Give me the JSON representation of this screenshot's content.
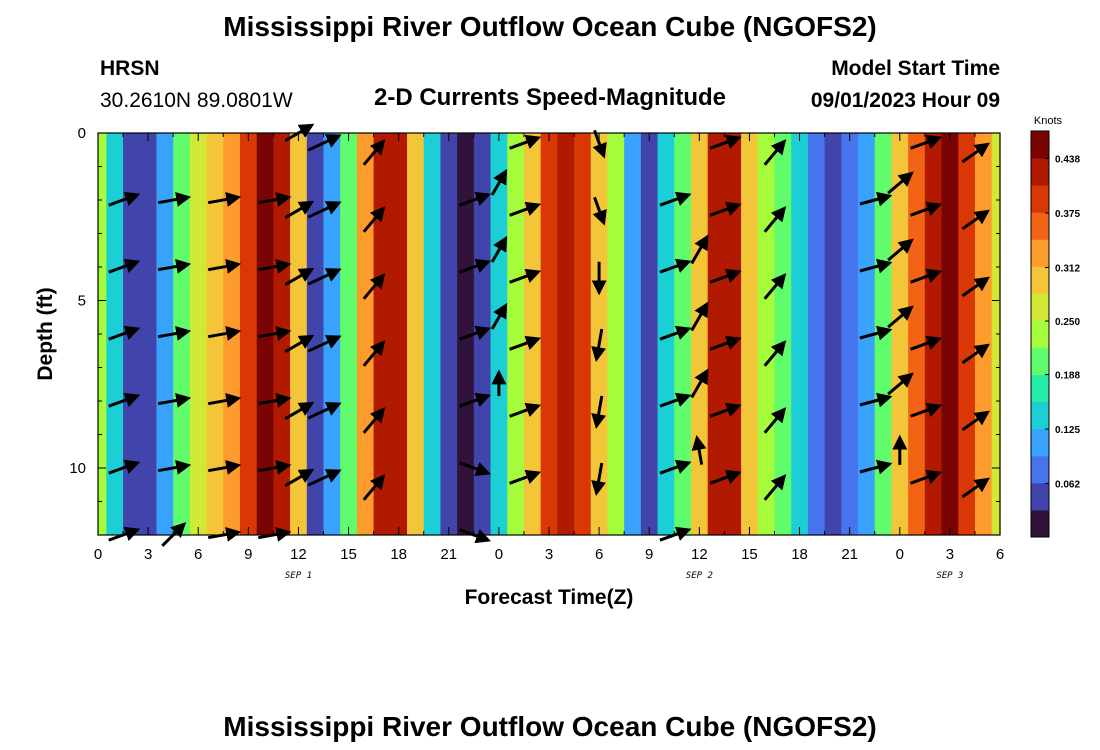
{
  "page_title": "Mississippi River Outflow Ocean Cube (NGOFS2)",
  "header": {
    "station_id": "HRSN",
    "coordinates": "30.2610N  89.0801W",
    "plot_title": "2-D Currents Speed-Magnitude",
    "model_label": "Model Start Time",
    "model_time": "09/01/2023 Hour 09"
  },
  "footer_title": "Mississippi River Outflow Ocean Cube (NGOFS2)",
  "chart_data": {
    "type": "heatmap",
    "title": "2-D Currents Speed-Magnitude",
    "xlabel": "Forecast Time(Z)",
    "ylabel": "Depth (ft)",
    "x_hours_range": [
      0,
      54
    ],
    "x_ticks": [
      {
        "hour": 0,
        "label": "0"
      },
      {
        "hour": 3,
        "label": "3"
      },
      {
        "hour": 6,
        "label": "6"
      },
      {
        "hour": 9,
        "label": "9"
      },
      {
        "hour": 12,
        "label": "12"
      },
      {
        "hour": 15,
        "label": "15"
      },
      {
        "hour": 18,
        "label": "18"
      },
      {
        "hour": 21,
        "label": "21"
      },
      {
        "hour": 24,
        "label": "0"
      },
      {
        "hour": 27,
        "label": "3"
      },
      {
        "hour": 30,
        "label": "6"
      },
      {
        "hour": 33,
        "label": "9"
      },
      {
        "hour": 36,
        "label": "12"
      },
      {
        "hour": 39,
        "label": "15"
      },
      {
        "hour": 42,
        "label": "18"
      },
      {
        "hour": 45,
        "label": "21"
      },
      {
        "hour": 48,
        "label": "0"
      },
      {
        "hour": 51,
        "label": "3"
      },
      {
        "hour": 54,
        "label": "6"
      }
    ],
    "date_labels": [
      {
        "hour": 12,
        "label": "SEP 1"
      },
      {
        "hour": 36,
        "label": "SEP 2"
      },
      {
        "hour": 51,
        "label": "SEP 3"
      }
    ],
    "y_range": [
      0,
      12
    ],
    "y_ticks": [
      {
        "value": 0,
        "label": "0"
      },
      {
        "value": 5,
        "label": "5"
      },
      {
        "value": 10,
        "label": "10"
      }
    ],
    "colorbar": {
      "unit": "Knots",
      "min": 0.0,
      "max": 0.47,
      "ticks": [
        "0.438",
        "0.375",
        "0.312",
        "0.250",
        "0.188",
        "0.125",
        "0.062"
      ],
      "colors": [
        "#30123b",
        "#4145ab",
        "#4675ed",
        "#39a2fc",
        "#1bcfd4",
        "#24eca6",
        "#61fc6c",
        "#a4fc3b",
        "#d1e834",
        "#f3c63a",
        "#fe9b2d",
        "#f36315",
        "#d93806",
        "#b11901",
        "#7a0403"
      ]
    },
    "speed_knots": [
      0.22,
      0.13,
      0.045,
      0.06,
      0.12,
      0.2,
      0.26,
      0.3,
      0.32,
      0.4,
      0.44,
      0.43,
      0.3,
      0.06,
      0.1,
      0.2,
      0.33,
      0.42,
      0.42,
      0.3,
      0.15,
      0.06,
      0.03,
      0.05,
      0.15,
      0.25,
      0.31,
      0.38,
      0.41,
      0.4,
      0.3,
      0.22,
      0.12,
      0.05,
      0.13,
      0.2,
      0.3,
      0.41,
      0.42,
      0.3,
      0.25,
      0.19,
      0.14,
      0.09,
      0.05,
      0.07,
      0.12,
      0.2,
      0.3,
      0.36,
      0.42,
      0.44,
      0.4,
      0.33,
      0.28
    ],
    "vector_depths_ft": [
      0,
      2,
      4,
      6,
      8,
      10,
      12
    ],
    "vectors": [
      {
        "hour": 1.5,
        "dir_deg": 70,
        "rel_len": 0.9,
        "depths": [
          2,
          4,
          6,
          8,
          10,
          12
        ]
      },
      {
        "hour": 4.5,
        "dir_deg": 80,
        "rel_len": 0.9,
        "depths": [
          2,
          4,
          6,
          8,
          10
        ]
      },
      {
        "hour": 4.5,
        "dir_deg": 45,
        "rel_len": 0.9,
        "depths": [
          12
        ]
      },
      {
        "hour": 7.5,
        "dir_deg": 80,
        "rel_len": 0.9,
        "depths": [
          2,
          4,
          6,
          8,
          10,
          12
        ]
      },
      {
        "hour": 10.5,
        "dir_deg": 80,
        "rel_len": 0.9,
        "depths": [
          2,
          4,
          6,
          8,
          10,
          12
        ]
      },
      {
        "hour": 12.0,
        "dir_deg": 60,
        "rel_len": 0.9,
        "depths": [
          0,
          2.3,
          4.3,
          6.3,
          8.3,
          10.3
        ]
      },
      {
        "hour": 13.5,
        "dir_deg": 65,
        "rel_len": 1.0,
        "depths": [
          0.3,
          2.3,
          4.3,
          6.3,
          8.3,
          10.3
        ]
      },
      {
        "hour": 16.5,
        "dir_deg": 40,
        "rel_len": 0.9,
        "depths": [
          0.6,
          2.6,
          4.6,
          6.6,
          8.6,
          10.6
        ]
      },
      {
        "hour": 22.5,
        "dir_deg": 70,
        "rel_len": 0.9,
        "depths": [
          2,
          4,
          6,
          8
        ]
      },
      {
        "hour": 22.5,
        "dir_deg": 110,
        "rel_len": 0.9,
        "depths": [
          10,
          12
        ]
      },
      {
        "hour": 24.0,
        "dir_deg": 30,
        "rel_len": 0.8,
        "depths": [
          1.5,
          3.5,
          5.5
        ]
      },
      {
        "hour": 24.0,
        "dir_deg": 0,
        "rel_len": 0.7,
        "depths": [
          7.5
        ]
      },
      {
        "hour": 25.5,
        "dir_deg": 70,
        "rel_len": 0.9,
        "depths": [
          0.3,
          2.3,
          4.3,
          6.3,
          8.3,
          10.3
        ]
      },
      {
        "hour": 30.0,
        "dir_deg": 160,
        "rel_len": 0.8,
        "depths": [
          0.3,
          2.3
        ]
      },
      {
        "hour": 30.0,
        "dir_deg": 180,
        "rel_len": 0.9,
        "depths": [
          4.3
        ]
      },
      {
        "hour": 30.0,
        "dir_deg": 190,
        "rel_len": 0.9,
        "depths": [
          6.3,
          8.3,
          10.3
        ]
      },
      {
        "hour": 34.5,
        "dir_deg": 70,
        "rel_len": 0.9,
        "depths": [
          2,
          4,
          6,
          8,
          10,
          12
        ]
      },
      {
        "hour": 36.0,
        "dir_deg": 30,
        "rel_len": 0.9,
        "depths": [
          3.5,
          5.5,
          7.5
        ]
      },
      {
        "hour": 36.0,
        "dir_deg": 350,
        "rel_len": 0.8,
        "depths": [
          9.5
        ]
      },
      {
        "hour": 37.5,
        "dir_deg": 70,
        "rel_len": 0.9,
        "depths": [
          0.3,
          2.3,
          4.3,
          6.3,
          8.3,
          10.3
        ]
      },
      {
        "hour": 40.5,
        "dir_deg": 40,
        "rel_len": 0.9,
        "depths": [
          0.6,
          2.6,
          4.6,
          6.6,
          8.6,
          10.6
        ]
      },
      {
        "hour": 46.5,
        "dir_deg": 75,
        "rel_len": 0.9,
        "depths": [
          2,
          4,
          6,
          8,
          10
        ]
      },
      {
        "hour": 48.0,
        "dir_deg": 50,
        "rel_len": 0.9,
        "depths": [
          1.5,
          3.5,
          5.5,
          7.5
        ]
      },
      {
        "hour": 48.0,
        "dir_deg": 0,
        "rel_len": 0.8,
        "depths": [
          9.5
        ]
      },
      {
        "hour": 49.5,
        "dir_deg": 70,
        "rel_len": 0.9,
        "depths": [
          0.3,
          2.3,
          4.3,
          6.3,
          8.3,
          10.3
        ]
      },
      {
        "hour": 52.5,
        "dir_deg": 55,
        "rel_len": 0.9,
        "depths": [
          0.6,
          2.6,
          4.6,
          6.6,
          8.6,
          10.6
        ]
      }
    ]
  }
}
